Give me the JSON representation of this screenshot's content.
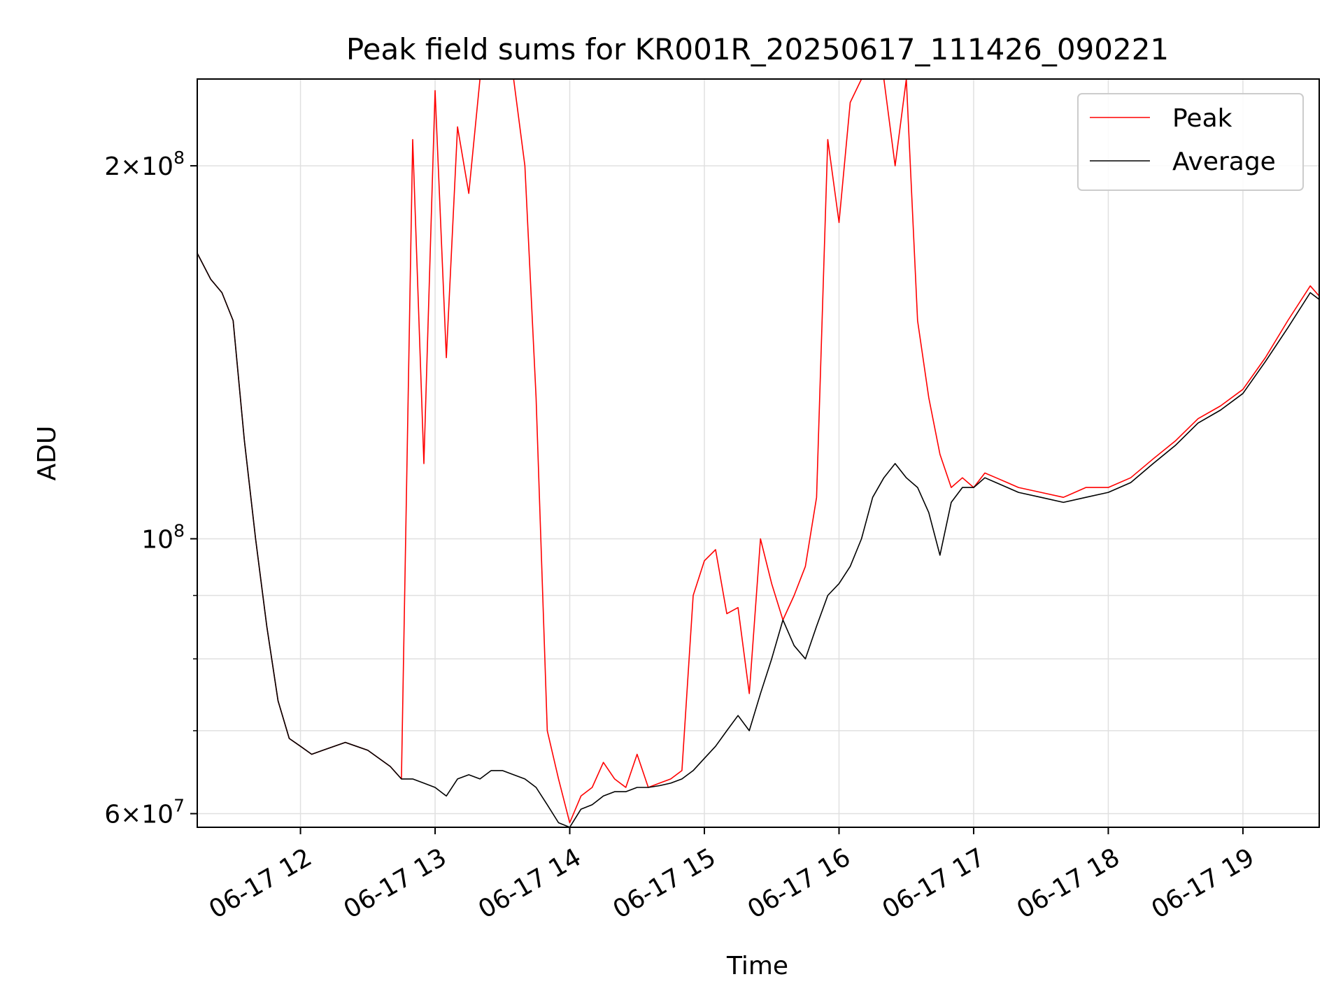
{
  "chart_data": {
    "type": "line",
    "title": "Peak field sums for KR001R_20250617_111426_090221",
    "xlabel": "Time",
    "ylabel": "ADU",
    "yscale": "log",
    "xlim": [
      "2025-06-17 11:14",
      "2025-06-17 19:34"
    ],
    "ylim": [
      58500000,
      235000000
    ],
    "grid": true,
    "legend_position": "top-right",
    "x_ticks": [
      {
        "x": "2025-06-17 12:00",
        "label": "06-17 12"
      },
      {
        "x": "2025-06-17 13:00",
        "label": "06-17 13"
      },
      {
        "x": "2025-06-17 14:00",
        "label": "06-17 14"
      },
      {
        "x": "2025-06-17 15:00",
        "label": "06-17 15"
      },
      {
        "x": "2025-06-17 16:00",
        "label": "06-17 16"
      },
      {
        "x": "2025-06-17 17:00",
        "label": "06-17 17"
      },
      {
        "x": "2025-06-17 18:00",
        "label": "06-17 18"
      },
      {
        "x": "2025-06-17 19:00",
        "label": "06-17 19"
      }
    ],
    "y_major_ticks": [
      {
        "value": 60000000,
        "mant": "6",
        "exp": "7"
      },
      {
        "value": 100000000,
        "mant": "",
        "exp": "8"
      },
      {
        "value": 200000000,
        "mant": "2",
        "exp": "8"
      }
    ],
    "y_minor_ticks": [
      70000000,
      80000000,
      90000000
    ],
    "series": [
      {
        "name": "Peak",
        "color": "#ff0000",
        "x": [
          "2025-06-17 11:14",
          "2025-06-17 11:20",
          "2025-06-17 11:25",
          "2025-06-17 11:30",
          "2025-06-17 11:35",
          "2025-06-17 11:40",
          "2025-06-17 11:45",
          "2025-06-17 11:50",
          "2025-06-17 11:55",
          "2025-06-17 12:00",
          "2025-06-17 12:05",
          "2025-06-17 12:10",
          "2025-06-17 12:20",
          "2025-06-17 12:30",
          "2025-06-17 12:40",
          "2025-06-17 12:45",
          "2025-06-17 12:50",
          "2025-06-17 12:55",
          "2025-06-17 13:00",
          "2025-06-17 13:05",
          "2025-06-17 13:10",
          "2025-06-17 13:15",
          "2025-06-17 13:20",
          "2025-06-17 13:25",
          "2025-06-17 13:30",
          "2025-06-17 13:35",
          "2025-06-17 13:40",
          "2025-06-17 13:45",
          "2025-06-17 13:50",
          "2025-06-17 13:55",
          "2025-06-17 14:00",
          "2025-06-17 14:05",
          "2025-06-17 14:10",
          "2025-06-17 14:15",
          "2025-06-17 14:20",
          "2025-06-17 14:25",
          "2025-06-17 14:30",
          "2025-06-17 14:35",
          "2025-06-17 14:40",
          "2025-06-17 14:45",
          "2025-06-17 14:50",
          "2025-06-17 14:55",
          "2025-06-17 15:00",
          "2025-06-17 15:05",
          "2025-06-17 15:10",
          "2025-06-17 15:15",
          "2025-06-17 15:20",
          "2025-06-17 15:25",
          "2025-06-17 15:30",
          "2025-06-17 15:35",
          "2025-06-17 15:40",
          "2025-06-17 15:45",
          "2025-06-17 15:50",
          "2025-06-17 15:55",
          "2025-06-17 16:00",
          "2025-06-17 16:05",
          "2025-06-17 16:10",
          "2025-06-17 16:15",
          "2025-06-17 16:20",
          "2025-06-17 16:25",
          "2025-06-17 16:30",
          "2025-06-17 16:35",
          "2025-06-17 16:40",
          "2025-06-17 16:45",
          "2025-06-17 16:50",
          "2025-06-17 16:55",
          "2025-06-17 17:00",
          "2025-06-17 17:05",
          "2025-06-17 17:10",
          "2025-06-17 17:15",
          "2025-06-17 17:20",
          "2025-06-17 17:30",
          "2025-06-17 17:40",
          "2025-06-17 17:50",
          "2025-06-17 18:00",
          "2025-06-17 18:10",
          "2025-06-17 18:20",
          "2025-06-17 18:30",
          "2025-06-17 18:40",
          "2025-06-17 18:50",
          "2025-06-17 19:00",
          "2025-06-17 19:10",
          "2025-06-17 19:20",
          "2025-06-17 19:30",
          "2025-06-17 19:34"
        ],
        "y": [
          170000000,
          162000000,
          158000000,
          150000000,
          120000000,
          100000000,
          85000000,
          74000000,
          69000000,
          68000000,
          67000000,
          67500000,
          68500000,
          67500000,
          65500000,
          64000000,
          210000000,
          115000000,
          230000000,
          140000000,
          215000000,
          190000000,
          235000000,
          235000000,
          235000000,
          235000000,
          200000000,
          130000000,
          70000000,
          64000000,
          59000000,
          62000000,
          63000000,
          66000000,
          64000000,
          63000000,
          67000000,
          63000000,
          63500000,
          64000000,
          65000000,
          90000000,
          96000000,
          98000000,
          87000000,
          88000000,
          75000000,
          100000000,
          92000000,
          86000000,
          90000000,
          95000000,
          108000000,
          210000000,
          180000000,
          225000000,
          235000000,
          235000000,
          235000000,
          200000000,
          235000000,
          150000000,
          130000000,
          117000000,
          110000000,
          112000000,
          110000000,
          113000000,
          112000000,
          111000000,
          110000000,
          109000000,
          108000000,
          110000000,
          110000000,
          112000000,
          116000000,
          120000000,
          125000000,
          128000000,
          132000000,
          140000000,
          150000000,
          160000000,
          157000000
        ]
      },
      {
        "name": "Average",
        "color": "#000000",
        "x": [
          "2025-06-17 11:14",
          "2025-06-17 11:20",
          "2025-06-17 11:25",
          "2025-06-17 11:30",
          "2025-06-17 11:35",
          "2025-06-17 11:40",
          "2025-06-17 11:45",
          "2025-06-17 11:50",
          "2025-06-17 11:55",
          "2025-06-17 12:00",
          "2025-06-17 12:05",
          "2025-06-17 12:10",
          "2025-06-17 12:20",
          "2025-06-17 12:30",
          "2025-06-17 12:40",
          "2025-06-17 12:45",
          "2025-06-17 12:50",
          "2025-06-17 12:55",
          "2025-06-17 13:00",
          "2025-06-17 13:05",
          "2025-06-17 13:10",
          "2025-06-17 13:15",
          "2025-06-17 13:20",
          "2025-06-17 13:25",
          "2025-06-17 13:30",
          "2025-06-17 13:35",
          "2025-06-17 13:40",
          "2025-06-17 13:45",
          "2025-06-17 13:50",
          "2025-06-17 13:55",
          "2025-06-17 14:00",
          "2025-06-17 14:05",
          "2025-06-17 14:10",
          "2025-06-17 14:15",
          "2025-06-17 14:20",
          "2025-06-17 14:25",
          "2025-06-17 14:30",
          "2025-06-17 14:35",
          "2025-06-17 14:40",
          "2025-06-17 14:45",
          "2025-06-17 14:50",
          "2025-06-17 14:55",
          "2025-06-17 15:00",
          "2025-06-17 15:05",
          "2025-06-17 15:10",
          "2025-06-17 15:15",
          "2025-06-17 15:20",
          "2025-06-17 15:25",
          "2025-06-17 15:30",
          "2025-06-17 15:35",
          "2025-06-17 15:40",
          "2025-06-17 15:45",
          "2025-06-17 15:50",
          "2025-06-17 15:55",
          "2025-06-17 16:00",
          "2025-06-17 16:05",
          "2025-06-17 16:10",
          "2025-06-17 16:15",
          "2025-06-17 16:20",
          "2025-06-17 16:25",
          "2025-06-17 16:30",
          "2025-06-17 16:35",
          "2025-06-17 16:40",
          "2025-06-17 16:45",
          "2025-06-17 16:50",
          "2025-06-17 16:55",
          "2025-06-17 17:00",
          "2025-06-17 17:05",
          "2025-06-17 17:10",
          "2025-06-17 17:15",
          "2025-06-17 17:20",
          "2025-06-17 17:30",
          "2025-06-17 17:40",
          "2025-06-17 17:50",
          "2025-06-17 18:00",
          "2025-06-17 18:10",
          "2025-06-17 18:20",
          "2025-06-17 18:30",
          "2025-06-17 18:40",
          "2025-06-17 18:50",
          "2025-06-17 19:00",
          "2025-06-17 19:10",
          "2025-06-17 19:20",
          "2025-06-17 19:30",
          "2025-06-17 19:34"
        ],
        "y": [
          170000000,
          162000000,
          158000000,
          150000000,
          120000000,
          100000000,
          85000000,
          74000000,
          69000000,
          68000000,
          67000000,
          67500000,
          68500000,
          67500000,
          65500000,
          64000000,
          64000000,
          63500000,
          63000000,
          62000000,
          64000000,
          64500000,
          64000000,
          65000000,
          65000000,
          64500000,
          64000000,
          63000000,
          61000000,
          59000000,
          58500000,
          60500000,
          61000000,
          62000000,
          62500000,
          62500000,
          63000000,
          63000000,
          63200000,
          63500000,
          64000000,
          65000000,
          66500000,
          68000000,
          70000000,
          72000000,
          70000000,
          75000000,
          80000000,
          86000000,
          82000000,
          80000000,
          85000000,
          90000000,
          92000000,
          95000000,
          100000000,
          108000000,
          112000000,
          115000000,
          112000000,
          110000000,
          105000000,
          97000000,
          107000000,
          110000000,
          110000000,
          112000000,
          111000000,
          110000000,
          109000000,
          108000000,
          107000000,
          108000000,
          109000000,
          111000000,
          115000000,
          119000000,
          124000000,
          127000000,
          131000000,
          139000000,
          148000000,
          158000000,
          156000000
        ]
      }
    ]
  }
}
